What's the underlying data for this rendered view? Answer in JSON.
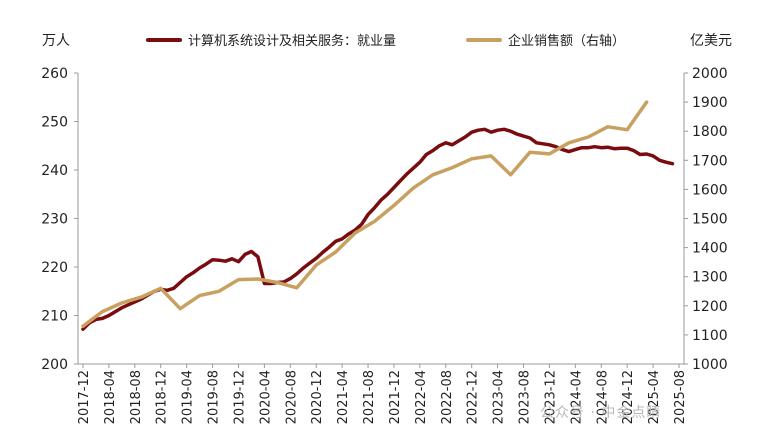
{
  "chart_data": {
    "type": "line",
    "left_unit": "万人",
    "right_unit": "亿美元",
    "y_left": {
      "min": 200,
      "max": 260,
      "ticks": [
        200,
        210,
        220,
        230,
        240,
        250,
        260
      ]
    },
    "y_right": {
      "min": 1000,
      "max": 2000,
      "ticks": [
        1000,
        1100,
        1200,
        1300,
        1400,
        1500,
        1600,
        1700,
        1800,
        1900,
        2000
      ]
    },
    "x_ticks": [
      "2017-12",
      "2018-04",
      "2018-08",
      "2018-12",
      "2019-04",
      "2019-08",
      "2019-12",
      "2020-04",
      "2020-08",
      "2020-12",
      "2021-04",
      "2021-08",
      "2021-12",
      "2022-04",
      "2022-08",
      "2022-12",
      "2023-04",
      "2023-08",
      "2023-12",
      "2024-04",
      "2024-08",
      "2024-12",
      "2025-04",
      "2025-08"
    ],
    "series": [
      {
        "name": "计算机系统设计及相关服务：就业量",
        "axis": "left",
        "color": "#7a0c10",
        "points": [
          [
            "2017-12",
            207.2
          ],
          [
            "2018-01",
            208.5
          ],
          [
            "2018-02",
            209.2
          ],
          [
            "2018-03",
            209.4
          ],
          [
            "2018-04",
            210.0
          ],
          [
            "2018-05",
            210.8
          ],
          [
            "2018-06",
            211.6
          ],
          [
            "2018-07",
            212.2
          ],
          [
            "2018-08",
            212.8
          ],
          [
            "2018-09",
            213.4
          ],
          [
            "2018-10",
            214.2
          ],
          [
            "2018-11",
            215.0
          ],
          [
            "2018-12",
            215.4
          ],
          [
            "2019-01",
            215.2
          ],
          [
            "2019-02",
            215.6
          ],
          [
            "2019-03",
            216.8
          ],
          [
            "2019-04",
            218.0
          ],
          [
            "2019-05",
            218.8
          ],
          [
            "2019-06",
            219.8
          ],
          [
            "2019-07",
            220.6
          ],
          [
            "2019-08",
            221.5
          ],
          [
            "2019-09",
            221.4
          ],
          [
            "2019-10",
            221.2
          ],
          [
            "2019-11",
            221.7
          ],
          [
            "2019-12",
            221.1
          ],
          [
            "2020-01",
            222.6
          ],
          [
            "2020-02",
            223.2
          ],
          [
            "2020-03",
            222.1
          ],
          [
            "2020-04",
            216.6
          ],
          [
            "2020-05",
            216.6
          ],
          [
            "2020-06",
            216.8
          ],
          [
            "2020-07",
            216.9
          ],
          [
            "2020-08",
            217.6
          ],
          [
            "2020-09",
            218.6
          ],
          [
            "2020-10",
            219.8
          ],
          [
            "2020-11",
            220.8
          ],
          [
            "2020-12",
            221.8
          ],
          [
            "2021-01",
            223.0
          ],
          [
            "2021-02",
            224.1
          ],
          [
            "2021-03",
            225.3
          ],
          [
            "2021-04",
            225.8
          ],
          [
            "2021-05",
            226.8
          ],
          [
            "2021-06",
            227.6
          ],
          [
            "2021-07",
            228.8
          ],
          [
            "2021-08",
            230.8
          ],
          [
            "2021-09",
            232.2
          ],
          [
            "2021-10",
            233.8
          ],
          [
            "2021-11",
            235.0
          ],
          [
            "2021-12",
            236.4
          ],
          [
            "2021-13",
            237.8
          ],
          [
            "2022-02",
            239.2
          ],
          [
            "2022-03",
            240.4
          ],
          [
            "2022-04",
            241.6
          ],
          [
            "2022-05",
            243.2
          ],
          [
            "2022-06",
            244.0
          ],
          [
            "2022-07",
            245.0
          ],
          [
            "2022-08",
            245.6
          ],
          [
            "2022-09",
            245.2
          ],
          [
            "2022-10",
            246.0
          ],
          [
            "2022-11",
            246.8
          ],
          [
            "2022-12",
            247.8
          ],
          [
            "2023-01",
            248.2
          ],
          [
            "2023-02",
            248.4
          ],
          [
            "2023-03",
            247.8
          ],
          [
            "2023-04",
            248.2
          ],
          [
            "2023-05",
            248.4
          ],
          [
            "2023-06",
            248.0
          ],
          [
            "2023-07",
            247.4
          ],
          [
            "2023-08",
            247.0
          ],
          [
            "2023-09",
            246.6
          ],
          [
            "2023-10",
            245.6
          ],
          [
            "2023-11",
            245.4
          ],
          [
            "2023-12",
            245.2
          ],
          [
            "2024-01",
            244.8
          ],
          [
            "2024-02",
            244.2
          ],
          [
            "2024-03",
            243.8
          ],
          [
            "2024-04",
            244.2
          ],
          [
            "2024-05",
            244.6
          ],
          [
            "2024-06",
            244.6
          ],
          [
            "2024-07",
            244.8
          ],
          [
            "2024-08",
            244.6
          ],
          [
            "2024-09",
            244.7
          ],
          [
            "2024-10",
            244.4
          ],
          [
            "2024-11",
            244.5
          ],
          [
            "2024-12",
            244.5
          ],
          [
            "2025-01",
            244.0
          ],
          [
            "2025-02",
            243.2
          ],
          [
            "2025-03",
            243.3
          ],
          [
            "2025-04",
            242.9
          ],
          [
            "2025-05",
            242.0
          ],
          [
            "2025-06",
            241.6
          ],
          [
            "2025-07",
            241.3
          ]
        ]
      },
      {
        "name": "企业销售额（右轴）",
        "axis": "right",
        "color": "#c8a060",
        "points": [
          [
            "2017-12",
            1130
          ],
          [
            "2018-03",
            1180
          ],
          [
            "2018-06",
            1210
          ],
          [
            "2018-09",
            1230
          ],
          [
            "2018-12",
            1260
          ],
          [
            "2019-03",
            1190
          ],
          [
            "2019-06",
            1235
          ],
          [
            "2019-09",
            1250
          ],
          [
            "2019-12",
            1290
          ],
          [
            "2020-03",
            1292
          ],
          [
            "2020-06",
            1280
          ],
          [
            "2020-09",
            1262
          ],
          [
            "2020-12",
            1340
          ],
          [
            "2021-03",
            1385
          ],
          [
            "2021-06",
            1450
          ],
          [
            "2021-09",
            1490
          ],
          [
            "2021-12",
            1545
          ],
          [
            "2022-03",
            1605
          ],
          [
            "2022-06",
            1650
          ],
          [
            "2022-09",
            1675
          ],
          [
            "2022-12",
            1705
          ],
          [
            "2023-03",
            1715
          ],
          [
            "2023-06",
            1650
          ],
          [
            "2023-09",
            1728
          ],
          [
            "2023-12",
            1722
          ],
          [
            "2024-03",
            1760
          ],
          [
            "2024-06",
            1780
          ],
          [
            "2024-09",
            1815
          ],
          [
            "2024-12",
            1805
          ],
          [
            "2025-03",
            1900
          ]
        ]
      }
    ],
    "legend_position": "top",
    "grid": false
  },
  "watermark": "公众号 · 中金点睛"
}
